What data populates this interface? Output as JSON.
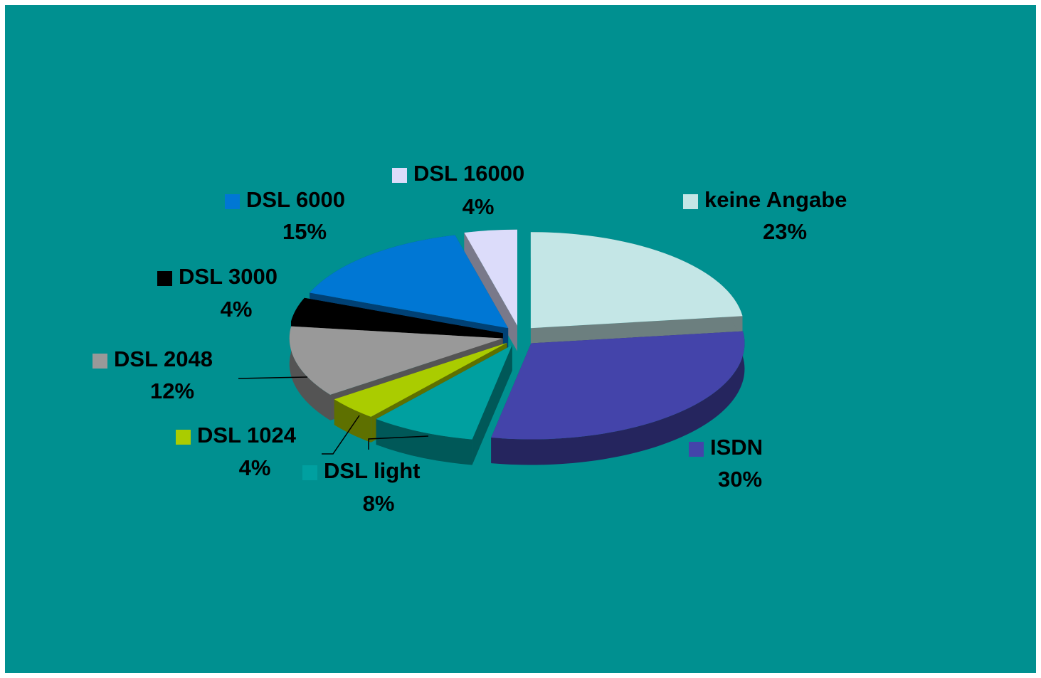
{
  "chart_data": {
    "type": "pie",
    "categories": [
      "keine Angabe",
      "ISDN",
      "DSL light",
      "DSL 1024",
      "DSL 2048",
      "DSL 3000",
      "DSL 6000",
      "DSL 16000"
    ],
    "values": [
      23,
      30,
      8,
      4,
      12,
      4,
      15,
      4
    ],
    "value_labels": [
      "23%",
      "30%",
      "8%",
      "4%",
      "12%",
      "4%",
      "15%",
      "4%"
    ],
    "colors": [
      "#c4e6e6",
      "#4444aa",
      "#00a0a0",
      "#aacc00",
      "#999999",
      "#000000",
      "#0077d4",
      "#dcdcfa"
    ]
  }
}
